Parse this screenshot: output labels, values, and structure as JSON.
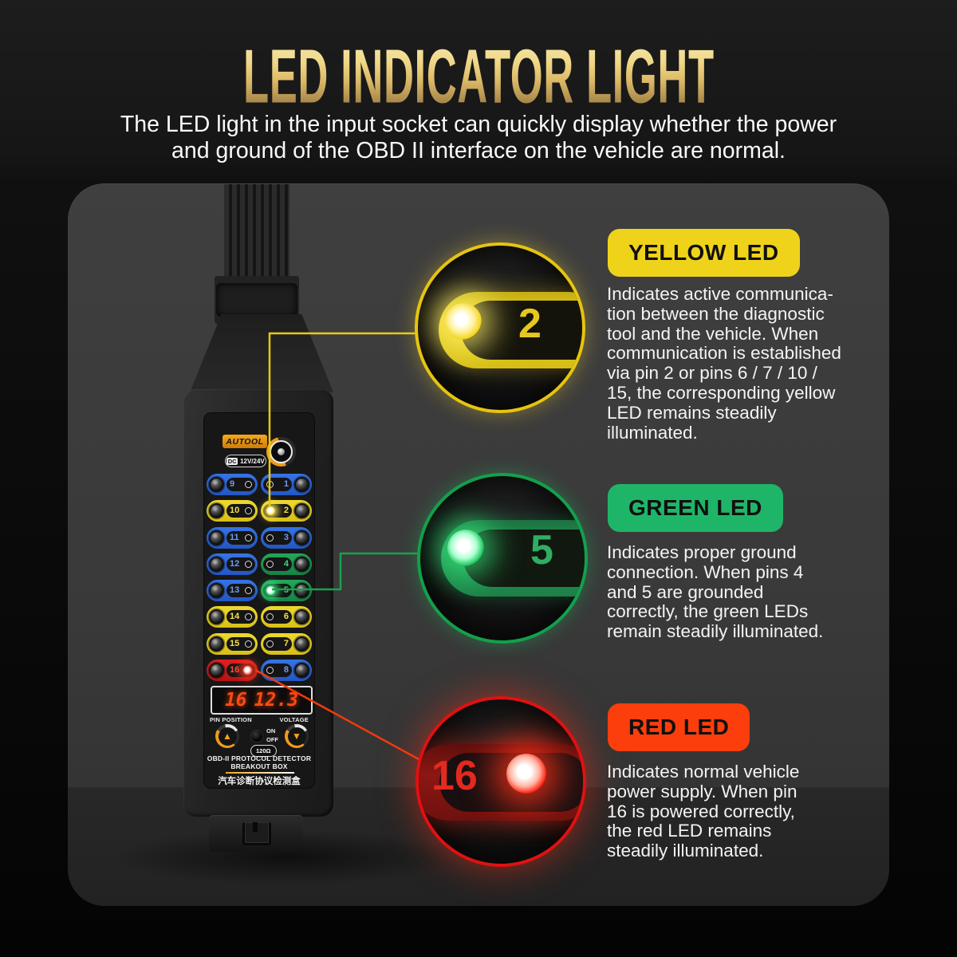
{
  "header": {
    "title": "LED INDICATOR LIGHT",
    "subtitle": "The LED light in the input socket can quickly display whether the power\nand ground of the OBD II interface on the vehicle are normal."
  },
  "device": {
    "brand": "AUTOOL",
    "power_label_dc": "DC",
    "power_label_voltage": "12V/24V",
    "pin_rows": [
      {
        "left": {
          "num": "9",
          "color": "blue",
          "lit": false
        },
        "right": {
          "num": "1",
          "color": "blue",
          "lit": false
        }
      },
      {
        "left": {
          "num": "10",
          "color": "yellow",
          "lit": false
        },
        "right": {
          "num": "2",
          "color": "yellow",
          "lit": true
        }
      },
      {
        "left": {
          "num": "11",
          "color": "blue",
          "lit": false
        },
        "right": {
          "num": "3",
          "color": "blue",
          "lit": false
        }
      },
      {
        "left": {
          "num": "12",
          "color": "blue",
          "lit": false
        },
        "right": {
          "num": "4",
          "color": "green",
          "lit": false
        }
      },
      {
        "left": {
          "num": "13",
          "color": "blue",
          "lit": false
        },
        "right": {
          "num": "5",
          "color": "green",
          "lit": true
        }
      },
      {
        "left": {
          "num": "14",
          "color": "yellow",
          "lit": false
        },
        "right": {
          "num": "6",
          "color": "yellow",
          "lit": false
        }
      },
      {
        "left": {
          "num": "15",
          "color": "yellow",
          "lit": false
        },
        "right": {
          "num": "7",
          "color": "yellow",
          "lit": false
        }
      },
      {
        "left": {
          "num": "16",
          "color": "red",
          "lit": true
        },
        "right": {
          "num": "8",
          "color": "blue",
          "lit": false
        }
      }
    ],
    "display": {
      "pin": "16",
      "voltage": "12.3"
    },
    "label_pin_position": "PIN POSITION",
    "label_voltage": "VOLTAGE",
    "label_on": "ON",
    "label_off": "OFF",
    "knob_up_glyph": "▲",
    "knob_down_glyph": "▼",
    "label_impedance": "120Ω",
    "product_line1": "OBD-II PROTOCOL DETECTOR",
    "product_line2": "BREAKOUT BOX",
    "product_cn": "汽车诊断协议检测盒"
  },
  "callouts": [
    {
      "id": "yellow",
      "badge": "YELLOW LED",
      "badge_color": "#efd31b",
      "led_number": "2",
      "text": "Indicates active communica-\ntion between the diagnostic\ntool and the vehicle. When\ncommunication is established\nvia pin 2 or pins 6 / 7 / 10 /\n15, the corresponding yellow\nLED remains steadily\nilluminated."
    },
    {
      "id": "green",
      "badge": "GREEN LED",
      "badge_color": "#1fb568",
      "led_number": "5",
      "text": "Indicates proper ground\nconnection. When pins 4\nand 5 are grounded\ncorrectly, the green LEDs\nremain steadily illuminated."
    },
    {
      "id": "red",
      "badge": "RED LED",
      "badge_color": "#fb3e0c",
      "led_number": "16",
      "text": "Indicates normal vehicle\npower supply. When pin\n16 is powered correctly,\nthe red LED remains\nsteadily illuminated."
    }
  ],
  "colors": {
    "title_gold": "#e7c979",
    "pin_blue": "#2f6ce0",
    "pin_yellow": "#e8d22a",
    "pin_green": "#1d9e53",
    "pin_red": "#d91d1d"
  }
}
